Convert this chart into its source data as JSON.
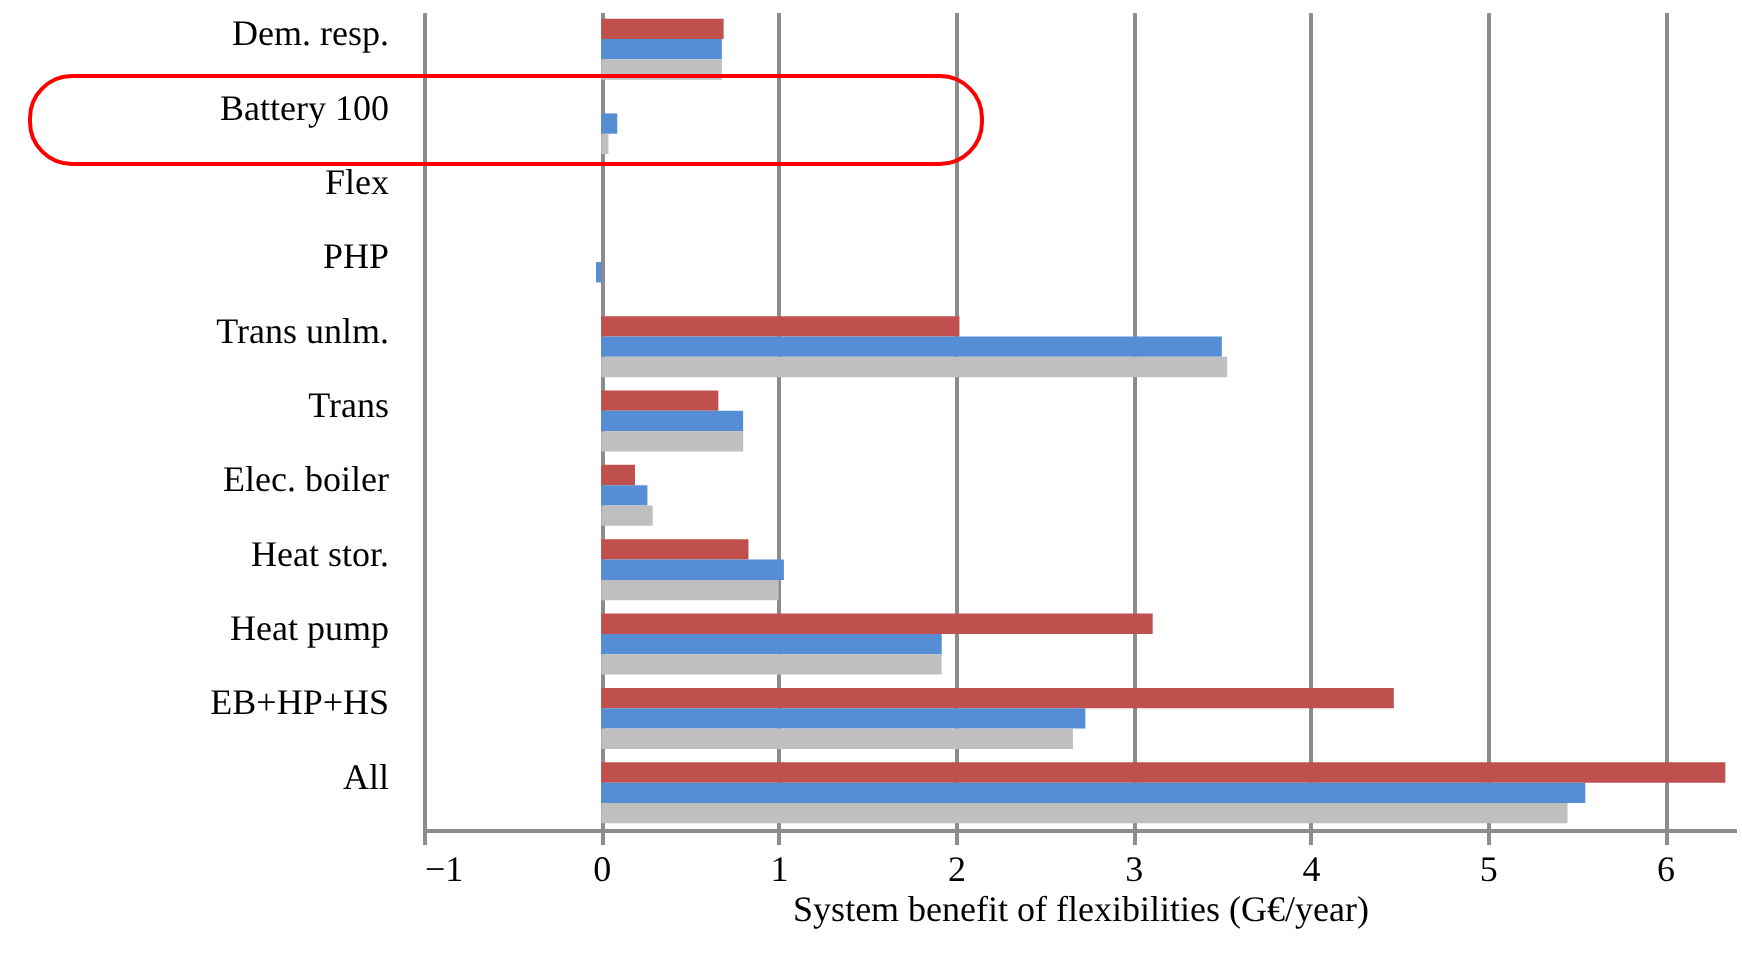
{
  "chart_data": {
    "type": "bar",
    "orientation": "horizontal",
    "xlabel": "System benefit of flexibilities (G€/year)",
    "categories": [
      "Dem. resp.",
      "Battery 100",
      "Flex",
      "PHP",
      "Trans unlm.",
      "Trans",
      "Elec. boiler",
      "Heat stor.",
      "Heat pump",
      "EB+HP+HS",
      "All"
    ],
    "series": [
      {
        "color": "#c0504d",
        "values": [
          0.69,
          0,
          0,
          0,
          2.02,
          0.66,
          0.19,
          0.83,
          3.11,
          4.47,
          6.34
        ]
      },
      {
        "color": "#558ed5",
        "values": [
          0.68,
          0.09,
          0,
          -0.03,
          3.5,
          0.8,
          0.26,
          1.03,
          1.92,
          2.73,
          5.55
        ]
      },
      {
        "color": "#bfbfbf",
        "values": [
          0.68,
          0.04,
          0,
          0,
          3.53,
          0.8,
          0.29,
          1.0,
          1.92,
          2.66,
          5.45
        ]
      }
    ],
    "xlim": [
      -1,
      6.4
    ],
    "xticks": [
      -1,
      0,
      1,
      2,
      3,
      4,
      5,
      6
    ],
    "grid": "x"
  }
}
